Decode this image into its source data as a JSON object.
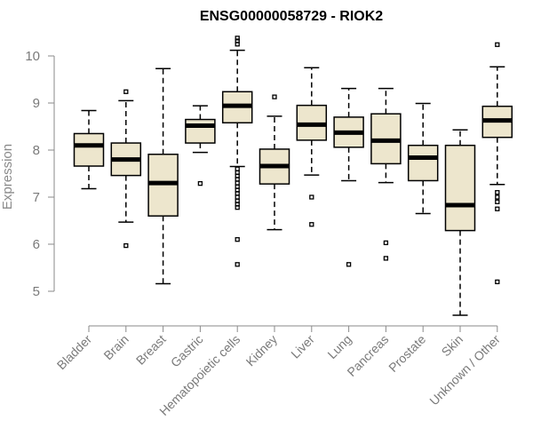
{
  "chart_data": {
    "type": "boxplot",
    "title": "ENSG00000058729 - RIOK2",
    "ylabel": "Expression",
    "ylim": [
      4.5,
      10.4
    ],
    "yticks": [
      5,
      6,
      7,
      8,
      9,
      10
    ],
    "categories": [
      "Bladder",
      "Brain",
      "Breast",
      "Gastric",
      "Hematopoietic cells",
      "Kidney",
      "Liver",
      "Lung",
      "Pancreas",
      "Prostate",
      "Skin",
      "Unknown / Other"
    ],
    "boxes": [
      {
        "category": "Bladder",
        "whisker_low": 7.18,
        "q1": 7.66,
        "median": 8.1,
        "q3": 8.35,
        "whisker_high": 8.84,
        "outliers": []
      },
      {
        "category": "Brain",
        "whisker_low": 6.47,
        "q1": 7.46,
        "median": 7.8,
        "q3": 8.15,
        "whisker_high": 9.05,
        "outliers": [
          5.97,
          9.24
        ]
      },
      {
        "category": "Breast",
        "whisker_low": 5.16,
        "q1": 6.6,
        "median": 7.3,
        "q3": 7.91,
        "whisker_high": 9.73,
        "outliers": []
      },
      {
        "category": "Gastric",
        "whisker_low": 7.95,
        "q1": 8.15,
        "median": 8.52,
        "q3": 8.65,
        "whisker_high": 8.94,
        "outliers": [
          7.29
        ]
      },
      {
        "category": "Hematopoietic cells",
        "whisker_low": 7.65,
        "q1": 8.58,
        "median": 8.94,
        "q3": 9.24,
        "whisker_high": 10.12,
        "outliers": [
          5.57,
          6.1,
          6.78,
          6.85,
          6.92,
          7.0,
          7.08,
          7.15,
          7.22,
          7.3,
          7.38,
          7.45,
          7.52,
          7.6,
          10.25,
          10.32,
          10.38
        ]
      },
      {
        "category": "Kidney",
        "whisker_low": 6.31,
        "q1": 7.28,
        "median": 7.66,
        "q3": 8.02,
        "whisker_high": 8.72,
        "outliers": [
          9.13
        ]
      },
      {
        "category": "Liver",
        "whisker_low": 7.47,
        "q1": 8.21,
        "median": 8.54,
        "q3": 8.95,
        "whisker_high": 9.75,
        "outliers": [
          6.42,
          7.0
        ]
      },
      {
        "category": "Lung",
        "whisker_low": 7.35,
        "q1": 8.06,
        "median": 8.37,
        "q3": 8.7,
        "whisker_high": 9.31,
        "outliers": [
          5.57
        ]
      },
      {
        "category": "Pancreas",
        "whisker_low": 7.31,
        "q1": 7.71,
        "median": 8.2,
        "q3": 8.77,
        "whisker_high": 9.31,
        "outliers": [
          5.7,
          6.03
        ]
      },
      {
        "category": "Prostate",
        "whisker_low": 6.65,
        "q1": 7.35,
        "median": 7.84,
        "q3": 8.1,
        "whisker_high": 8.99,
        "outliers": []
      },
      {
        "category": "Skin",
        "whisker_low": 4.49,
        "q1": 6.29,
        "median": 6.83,
        "q3": 8.1,
        "whisker_high": 8.43,
        "outliers": []
      },
      {
        "category": "Unknown / Other",
        "whisker_low": 7.27,
        "q1": 8.27,
        "median": 8.63,
        "q3": 8.93,
        "whisker_high": 9.77,
        "outliers": [
          5.2,
          6.75,
          6.9,
          7.0,
          7.1,
          10.24
        ]
      }
    ],
    "box_fill": "#ede6cd",
    "grid": false,
    "legend": "none"
  }
}
